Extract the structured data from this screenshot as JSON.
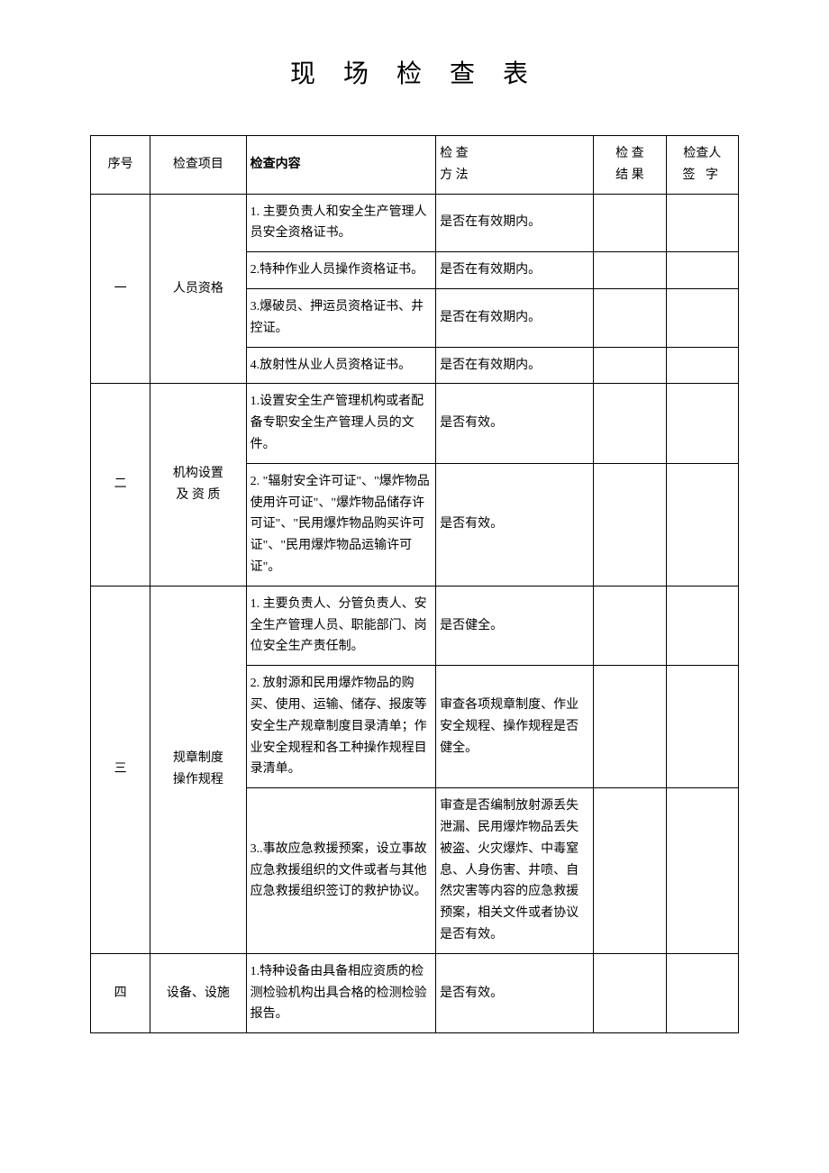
{
  "title": "现 场 检 查 表",
  "headers": {
    "seq": "序号",
    "item": "检查项目",
    "content": "检查内容",
    "method_l1": "检 查",
    "method_l2": "方 法",
    "result_l1": "检 查",
    "result_l2": "结 果",
    "sign_l1": "检查人",
    "sign_l2": "签  字"
  },
  "rows": {
    "r1": {
      "seq": "一",
      "item": "人员资格",
      "c1": "1. 主要负责人和安全生产管理人员安全资格证书。",
      "m1": "是否在有效期内。",
      "c2": "2.特种作业人员操作资格证书。",
      "m2": "是否在有效期内。",
      "c3": "3.爆破员、押运员资格证书、井控证。",
      "m3": "是否在有效期内。",
      "c4": "4.放射性从业人员资格证书。",
      "m4": "是否在有效期内。"
    },
    "r2": {
      "seq": "二",
      "item_l1": "机构设置",
      "item_l2": "及 资 质",
      "c1": "1.设置安全生产管理机构或者配备专职安全生产管理人员的文件。",
      "m1": "是否有效。",
      "c2": "2. \"辐射安全许可证\"、\"爆炸物品使用许可证\"、\"爆炸物品储存许可证\"、\"民用爆炸物品购买许可证\"、\"民用爆炸物品运输许可证\"。",
      "m2": "是否有效。"
    },
    "r3": {
      "seq": "三",
      "item_l1": "规章制度",
      "item_l2": "操作规程",
      "c1": "1. 主要负责人、分管负责人、安全生产管理人员、职能部门、岗位安全生产责任制。",
      "m1": "是否健全。",
      "c2": "2. 放射源和民用爆炸物品的购买、使用、运输、储存、报废等安全生产规章制度目录清单；作业安全规程和各工种操作规程目录清单。",
      "m2": "审查各项规章制度、作业安全规程、操作规程是否健全。",
      "c3": "3..事故应急救援预案，设立事故应急救援组织的文件或者与其他应急救援组织签订的救护协议。",
      "m3": "审查是否编制放射源丢失泄漏、民用爆炸物品丢失被盗、火灾爆炸、中毒窒息、人身伤害、井喷、自然灾害等内容的应急救援预案，相关文件或者协议是否有效。"
    },
    "r4": {
      "seq": "四",
      "item": "设备、设施",
      "c1": "1.特种设备由具备相应资质的检测检验机构出具合格的检测检验报告。",
      "m1": "是否有效。"
    }
  },
  "style": {
    "background_color": "#ffffff",
    "text_color": "#000000",
    "border_color": "#000000",
    "title_fontsize": 28,
    "body_fontsize": 14,
    "font_family": "SimSun"
  }
}
